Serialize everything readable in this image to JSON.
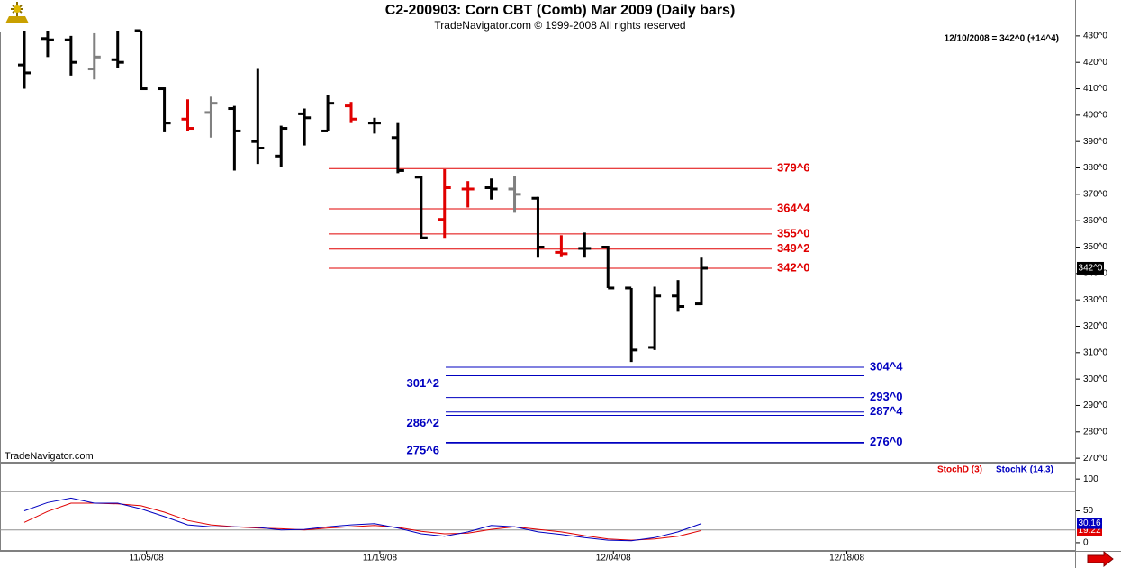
{
  "chart_data": [
    {
      "type": "ohlc",
      "title": "C2-200903:  Corn CBT (Comb) Mar 2009  (Daily bars)",
      "subtitle": "TradeNavigator.com © 1999-2008 All rights reserved",
      "watermark": "TradeNavigator.com",
      "info": "12/10/2008 = 342^0 (+14^4)",
      "categories": [
        null,
        null,
        null,
        null,
        null,
        "11/05/08",
        null,
        null,
        null,
        null,
        null,
        null,
        null,
        null,
        null,
        "11/19/08",
        null,
        null,
        null,
        null,
        null,
        null,
        null,
        null,
        null,
        "12/04/08",
        null,
        null,
        null,
        null,
        null,
        null,
        null,
        null,
        null,
        "12/18/08"
      ],
      "series": [
        {
          "open": [
            419,
            429,
            428.5,
            417.5,
            421,
            432,
            410,
            398.5,
            401,
            402.5,
            390,
            384.5,
            400.5,
            394,
            403.5,
            397,
            391.5,
            376.5,
            360.5,
            372,
            372.5,
            372,
            368.5,
            348,
            349.5,
            350,
            334.5,
            312,
            331.5,
            328.5,
            null,
            null,
            null,
            null,
            null,
            null
          ],
          "high": [
            432,
            432,
            430,
            431,
            432,
            432,
            410.5,
            406,
            407,
            403.5,
            417.5,
            396,
            402.5,
            407.5,
            405,
            399,
            397,
            377,
            379.5,
            375,
            376,
            377,
            369,
            354.5,
            355.5,
            350.5,
            334.5,
            335,
            337.5,
            346,
            null,
            null,
            null,
            null,
            null,
            null
          ],
          "low": [
            410,
            422,
            415,
            413.5,
            418,
            409.5,
            393.5,
            394,
            391.5,
            379,
            381.5,
            380.5,
            388.5,
            394,
            397,
            393,
            378,
            353,
            353.5,
            365,
            368,
            363,
            346,
            346.5,
            346,
            334.5,
            306.5,
            311,
            325.5,
            328,
            null,
            null,
            null,
            null,
            null,
            null
          ],
          "close": [
            416,
            428.5,
            420,
            422,
            420,
            410,
            397,
            395,
            404.5,
            394,
            387.5,
            395,
            399,
            404.5,
            398.5,
            397,
            379,
            353.5,
            372.5,
            372,
            372,
            370,
            350,
            347.5,
            349.5,
            334.5,
            311,
            331.5,
            327.5,
            342,
            null,
            null,
            null,
            null,
            null,
            null
          ],
          "colors": [
            "#000000",
            "#000000",
            "#000000",
            "#808080",
            "#000000",
            "#000000",
            "#000000",
            "#e00000",
            "#808080",
            "#000000",
            "#000000",
            "#000000",
            "#000000",
            "#000000",
            "#e00000",
            "#000000",
            "#000000",
            "#000000",
            "#e00000",
            "#e00000",
            "#000000",
            "#808080",
            "#000000",
            "#e00000",
            "#000000",
            "#000000",
            "#000000",
            "#000000",
            "#000000",
            "#000000",
            null,
            null,
            null,
            null,
            null,
            null
          ]
        }
      ],
      "ylim": [
        268,
        432
      ],
      "yticks": [
        {
          "value": 270,
          "label": "270^0"
        },
        {
          "value": 280,
          "label": "280^0"
        },
        {
          "value": 290,
          "label": "290^0"
        },
        {
          "value": 300,
          "label": "300^0"
        },
        {
          "value": 310,
          "label": "310^0"
        },
        {
          "value": 320,
          "label": "320^0"
        },
        {
          "value": 330,
          "label": "330^0"
        },
        {
          "value": 340,
          "label": "340^0"
        },
        {
          "value": 350,
          "label": "350^0"
        },
        {
          "value": 360,
          "label": "360^0"
        },
        {
          "value": 370,
          "label": "370^0"
        },
        {
          "value": 380,
          "label": "380^0"
        },
        {
          "value": 390,
          "label": "390^0"
        },
        {
          "value": 400,
          "label": "400^0"
        },
        {
          "value": 410,
          "label": "410^0"
        },
        {
          "value": 420,
          "label": "420^0"
        },
        {
          "value": 430,
          "label": "430^0"
        }
      ],
      "last_price": {
        "value": 342,
        "label": "342^0"
      },
      "levels": [
        {
          "color": "#e00000",
          "lines": [
            {
              "value": 379.75,
              "label": "379^6",
              "side": "right"
            },
            {
              "value": 364.5,
              "label": "364^4",
              "side": "right"
            },
            {
              "value": 355,
              "label": "355^0",
              "side": "right"
            },
            {
              "value": 349.25,
              "label": "349^2",
              "side": "right"
            },
            {
              "value": 342,
              "label": "342^0",
              "side": "right"
            }
          ]
        },
        {
          "color": "#0000c0",
          "lines": [
            {
              "value": 304.5,
              "label": "304^4",
              "side": "right"
            },
            {
              "value": 301.25,
              "label": "301^2",
              "side": "left"
            },
            {
              "value": 293,
              "label": "293^0",
              "side": "right"
            },
            {
              "value": 287.5,
              "label": "287^4",
              "side": "right"
            },
            {
              "value": 286.25,
              "label": "286^2",
              "side": "left"
            },
            {
              "value": 276,
              "label": "276^0",
              "side": "right"
            },
            {
              "value": 275.75,
              "label": "275^6",
              "side": "left"
            }
          ]
        }
      ]
    },
    {
      "type": "line",
      "series": [
        {
          "name": "StochD (3)",
          "color": "#e00000",
          "values": [
            32,
            49,
            62,
            62,
            61,
            58,
            48,
            35,
            28,
            25,
            23,
            22,
            20,
            23,
            25,
            27,
            24,
            18,
            14,
            15,
            21,
            25,
            21,
            17,
            11,
            6,
            4,
            6,
            10,
            19.22,
            null,
            null,
            null,
            null,
            null,
            null
          ]
        },
        {
          "name": "StochK (14,3)",
          "color": "#0000c0",
          "values": [
            50,
            63,
            70,
            62,
            62,
            53,
            41,
            28,
            25,
            25,
            24,
            20,
            21,
            25,
            28,
            30,
            23,
            14,
            10,
            17,
            27,
            25,
            17,
            13,
            8,
            4,
            3,
            8,
            17,
            30.16,
            null,
            null,
            null,
            null,
            null,
            null
          ]
        }
      ],
      "ylim": [
        -10,
        120
      ],
      "yticks": [
        0,
        50,
        100
      ],
      "levels": [
        20,
        80
      ]
    }
  ]
}
